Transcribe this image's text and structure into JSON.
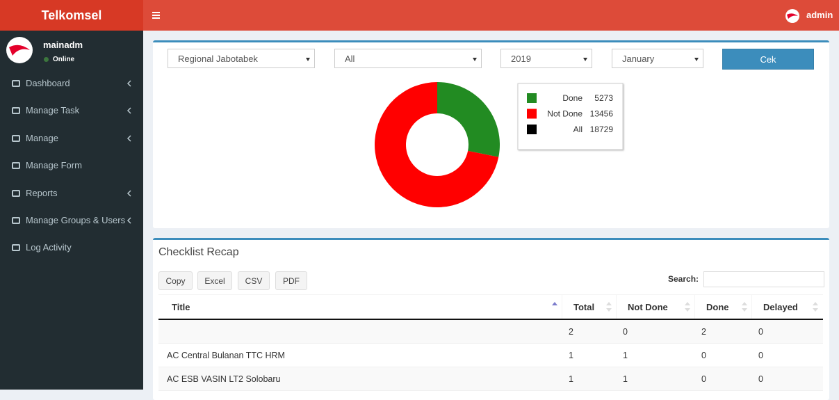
{
  "header": {
    "brand": "Telkomsel",
    "user": "admin"
  },
  "sidebar": {
    "user_name": "mainadm",
    "status": "Online",
    "menu": [
      {
        "label": "Dashboard",
        "expandable": true
      },
      {
        "label": "Manage Task",
        "expandable": true
      },
      {
        "label": "Manage",
        "expandable": true
      },
      {
        "label": "Manage Form",
        "expandable": false
      },
      {
        "label": "Reports",
        "expandable": true
      },
      {
        "label": "Manage Groups & Users",
        "expandable": true
      },
      {
        "label": "Log Activity",
        "expandable": false
      }
    ]
  },
  "filters": {
    "region": "Regional Jabotabek",
    "area": "All",
    "year": "2019",
    "month": "January",
    "button": "Cek"
  },
  "chart_data": {
    "type": "donut",
    "categories": [
      "Done",
      "Not Done"
    ],
    "values": [
      5273,
      13456
    ],
    "colors": [
      "#228b22",
      "#ff0000"
    ],
    "total": {
      "name": "All",
      "value": 18729,
      "color": "#000000"
    }
  },
  "table": {
    "title": "Checklist Recap",
    "buttons": [
      "Copy",
      "Excel",
      "CSV",
      "PDF"
    ],
    "search_label": "Search:",
    "columns": [
      "Title",
      "Total",
      "Not Done",
      "Done",
      "Delayed"
    ],
    "rows": [
      [
        null,
        2,
        0,
        2,
        0
      ],
      [
        "AC Central Bulanan TTC HRM",
        1,
        1,
        0,
        0
      ],
      [
        "AC ESB VASIN LT2 Solobaru",
        1,
        1,
        0,
        0
      ]
    ]
  }
}
